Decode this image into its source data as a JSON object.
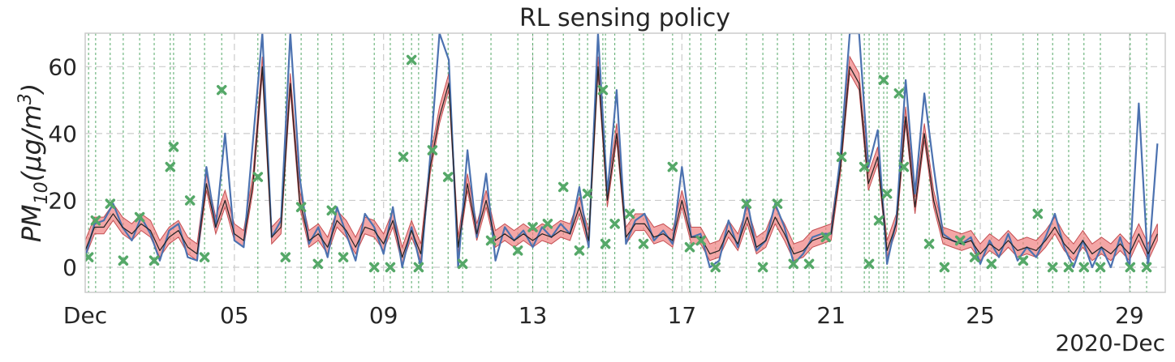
{
  "chart_data": {
    "type": "line",
    "title": "RL sensing policy",
    "y_label": [
      "PM",
      "10",
      "(μg/m",
      "3",
      ")"
    ],
    "x_offset_label": "2020-Dec",
    "xlim": [
      1,
      29.96
    ],
    "ylim": [
      -7.5,
      70
    ],
    "xticks": [
      {
        "value": 1,
        "label": "Dec"
      },
      {
        "value": 5,
        "label": "05"
      },
      {
        "value": 9,
        "label": "09"
      },
      13,
      17,
      21,
      25,
      29
    ],
    "yticks": [
      0,
      20,
      40,
      60
    ],
    "grid": true,
    "x": [
      1,
      1.25,
      1.5,
      1.75,
      2,
      2.25,
      2.5,
      2.75,
      3,
      3.25,
      3.5,
      3.75,
      4,
      4.25,
      4.5,
      4.75,
      5,
      5.25,
      5.5,
      5.75,
      6,
      6.25,
      6.5,
      6.75,
      7,
      7.25,
      7.5,
      7.75,
      8,
      8.25,
      8.5,
      8.75,
      9,
      9.25,
      9.5,
      9.75,
      10,
      10.25,
      10.5,
      10.75,
      11,
      11.25,
      11.5,
      11.75,
      12,
      12.25,
      12.5,
      12.75,
      13,
      13.25,
      13.5,
      13.75,
      14,
      14.25,
      14.5,
      14.75,
      15,
      15.25,
      15.5,
      15.75,
      16,
      16.25,
      16.5,
      16.75,
      17,
      17.25,
      17.5,
      17.75,
      18,
      18.25,
      18.5,
      18.75,
      19,
      19.25,
      19.5,
      19.75,
      20,
      20.25,
      20.5,
      20.75,
      21,
      21.25,
      21.5,
      21.75,
      22,
      22.25,
      22.5,
      22.75,
      23,
      23.25,
      23.5,
      23.75,
      24,
      24.25,
      24.5,
      24.75,
      25,
      25.25,
      25.5,
      25.75,
      26,
      26.25,
      26.5,
      26.75,
      27,
      27.25,
      27.5,
      27.75,
      28,
      28.25,
      28.5,
      28.75,
      29,
      29.25,
      29.5,
      29.75
    ],
    "band": {
      "color": "#f08080",
      "edge": "#c44e52",
      "lower": [
        3,
        10,
        10,
        14,
        10,
        8,
        11,
        9,
        3,
        7,
        9,
        4,
        2,
        23,
        10,
        18,
        8,
        6,
        23,
        58,
        7,
        10,
        53,
        18,
        6,
        8,
        4,
        12,
        9,
        4,
        10,
        9,
        5,
        12,
        1,
        9,
        2,
        28,
        43,
        53,
        4,
        23,
        8,
        18,
        6,
        8,
        6,
        8,
        6,
        8,
        7,
        9,
        8,
        16,
        6,
        58,
        18,
        38,
        7,
        11,
        11,
        7,
        8,
        6,
        18,
        7,
        7,
        2,
        3,
        9,
        5,
        13,
        4,
        6,
        13,
        8,
        2,
        3,
        6,
        7,
        8,
        28,
        58,
        53,
        23,
        31,
        3,
        11,
        43,
        16,
        38,
        18,
        7,
        6,
        5,
        6,
        2,
        5,
        3,
        6,
        3,
        4,
        3,
        6,
        10,
        5,
        2,
        6,
        2,
        4,
        2,
        5,
        2,
        8,
        2,
        8
      ],
      "upper": [
        8,
        15,
        15,
        19,
        15,
        13,
        16,
        14,
        8,
        12,
        14,
        9,
        7,
        28,
        15,
        23,
        13,
        11,
        28,
        63,
        12,
        15,
        58,
        23,
        11,
        13,
        9,
        17,
        14,
        9,
        15,
        14,
        10,
        17,
        6,
        14,
        7,
        33,
        48,
        58,
        9,
        28,
        13,
        23,
        11,
        13,
        11,
        13,
        11,
        13,
        12,
        14,
        13,
        21,
        11,
        63,
        23,
        43,
        12,
        16,
        16,
        12,
        13,
        11,
        23,
        12,
        12,
        7,
        8,
        14,
        10,
        18,
        9,
        11,
        18,
        13,
        7,
        8,
        11,
        12,
        13,
        33,
        63,
        58,
        28,
        36,
        8,
        16,
        48,
        21,
        43,
        23,
        12,
        11,
        10,
        11,
        7,
        10,
        8,
        11,
        8,
        9,
        8,
        11,
        15,
        10,
        7,
        11,
        7,
        9,
        7,
        10,
        7,
        13,
        7,
        13
      ]
    },
    "series": [
      {
        "color": "#4c72b0",
        "values": [
          3,
          13,
          14,
          19,
          12,
          8,
          15,
          10,
          2,
          11,
          13,
          3,
          2,
          30,
          12,
          40,
          8,
          6,
          38,
          70,
          9,
          14,
          70,
          27,
          7,
          12,
          3,
          18,
          10,
          2,
          16,
          12,
          4,
          18,
          0,
          12,
          0,
          33,
          70,
          62,
          0,
          35,
          9,
          28,
          2,
          12,
          8,
          11,
          6,
          12,
          9,
          13,
          10,
          24,
          6,
          70,
          22,
          53,
          7,
          14,
          16,
          8,
          11,
          7,
          30,
          9,
          10,
          0,
          2,
          14,
          6,
          20,
          5,
          8,
          19,
          12,
          1,
          4,
          9,
          10,
          10,
          33,
          70,
          70,
          30,
          41,
          1,
          14,
          56,
          22,
          52,
          30,
          10,
          8,
          7,
          9,
          1,
          8,
          3,
          10,
          2,
          6,
          3,
          9,
          16,
          6,
          0,
          8,
          0,
          6,
          0,
          9,
          0,
          49,
          0,
          37
        ]
      },
      {
        "color": "#222222",
        "values": [
          5,
          12,
          12,
          16,
          12,
          10,
          13,
          11,
          5,
          9,
          11,
          6,
          4,
          25,
          12,
          20,
          10,
          8,
          25,
          60,
          9,
          12,
          55,
          20,
          8,
          10,
          6,
          14,
          11,
          6,
          12,
          11,
          7,
          14,
          3,
          11,
          4,
          30,
          45,
          55,
          6,
          25,
          10,
          20,
          8,
          10,
          8,
          10,
          8,
          10,
          9,
          11,
          10,
          18,
          8,
          60,
          20,
          40,
          9,
          13,
          13,
          9,
          10,
          8,
          20,
          9,
          9,
          4,
          5,
          11,
          7,
          15,
          6,
          8,
          15,
          10,
          4,
          5,
          8,
          9,
          10,
          30,
          60,
          55,
          25,
          33,
          5,
          13,
          45,
          18,
          40,
          20,
          9,
          8,
          7,
          8,
          4,
          7,
          5,
          8,
          5,
          6,
          5,
          8,
          12,
          7,
          4,
          8,
          4,
          6,
          4,
          7,
          4,
          10,
          4,
          10
        ]
      }
    ],
    "markers": {
      "color": "#55a868",
      "x": [
        1.09,
        1.28,
        1.67,
        2.02,
        2.46,
        2.85,
        3.28,
        3.37,
        3.81,
        4.2,
        4.66,
        5.63,
        6.37,
        6.79,
        7.24,
        7.61,
        7.92,
        8.75,
        9.18,
        9.53,
        9.75,
        9.94,
        10.31,
        10.73,
        11.12,
        11.88,
        12.6,
        13.0,
        13.4,
        13.82,
        14.25,
        14.47,
        14.88,
        14.95,
        15.2,
        15.6,
        15.97,
        16.75,
        17.21,
        17.51,
        17.9,
        18.73,
        19.17,
        19.56,
        19.99,
        20.41,
        20.86,
        21.28,
        21.89,
        22.02,
        22.28,
        22.41,
        22.5,
        22.82,
        22.95,
        23.63,
        24.04,
        24.46,
        24.85,
        25.3,
        26.15,
        26.54,
        26.94,
        27.37,
        27.78,
        28.22,
        29.02,
        29.46
      ],
      "y": [
        3,
        14,
        19,
        2,
        15,
        2,
        30,
        36,
        20,
        3,
        53,
        27,
        3,
        18,
        1,
        17,
        3,
        0,
        0,
        33,
        62,
        0,
        35,
        27,
        1,
        8,
        5,
        12,
        13,
        24,
        5,
        22,
        53,
        7,
        13,
        16,
        7,
        30,
        6,
        8,
        0,
        19,
        0,
        19,
        1,
        1,
        9,
        33,
        30,
        1,
        14,
        56,
        22,
        52,
        30,
        7,
        0,
        8,
        3,
        1,
        2,
        16,
        0,
        0,
        0,
        0,
        0,
        0
      ]
    }
  }
}
